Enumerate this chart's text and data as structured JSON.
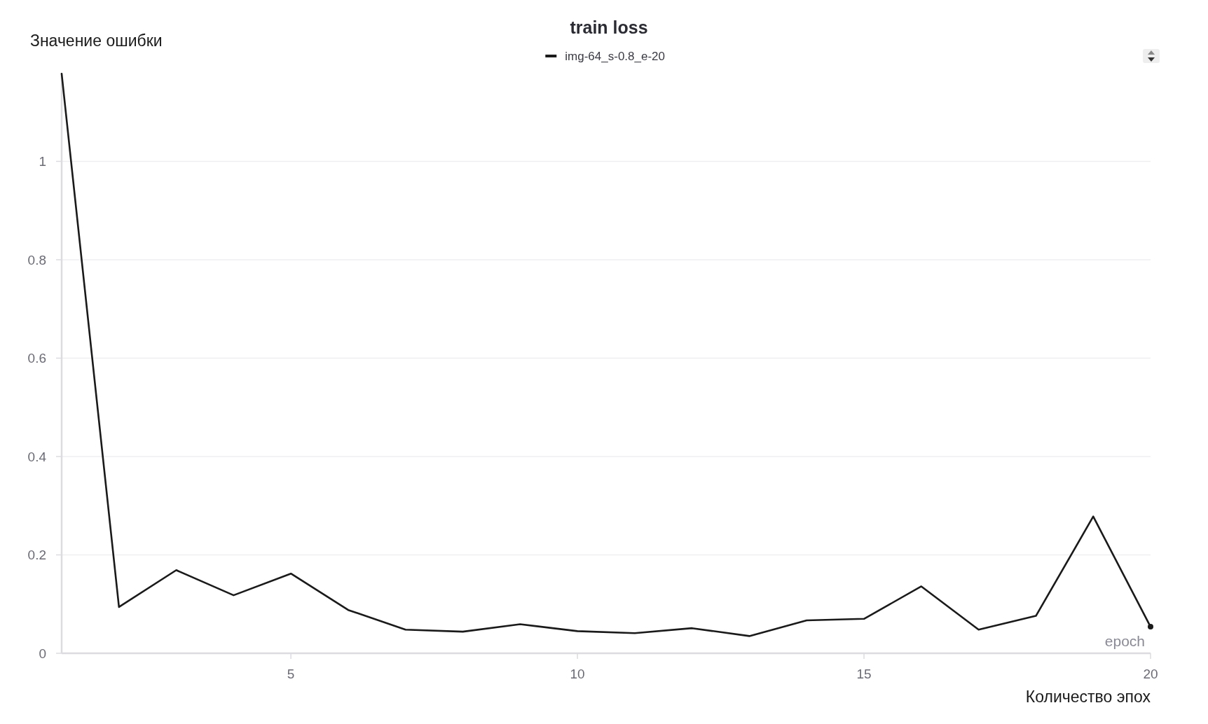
{
  "chart_data": {
    "type": "line",
    "title": "train loss",
    "ylabel": "Значение ошибки",
    "xlabel": "epoch",
    "annotations": [
      "Количество эпох"
    ],
    "x": [
      1,
      2,
      3,
      4,
      5,
      6,
      7,
      8,
      9,
      10,
      11,
      12,
      13,
      14,
      15,
      16,
      17,
      18,
      19,
      20
    ],
    "series": [
      {
        "name": "img-64_s-0.8_e-20",
        "color": "#1a1a1a",
        "values": [
          1.178,
          0.094,
          0.169,
          0.118,
          0.162,
          0.088,
          0.048,
          0.044,
          0.059,
          0.045,
          0.041,
          0.051,
          0.035,
          0.067,
          0.07,
          0.136,
          0.048,
          0.076,
          0.278,
          0.054
        ]
      },
      {
        "type": "scatter",
        "x": [
          20
        ],
        "values": [
          0.054
        ],
        "color": "#1a1a1a",
        "marker": "circle"
      }
    ],
    "xlim": [
      1,
      20
    ],
    "xticks": [
      5,
      10,
      15,
      20
    ],
    "ylim": [
      0,
      1.18
    ],
    "yticks": [
      0,
      0.2,
      0.4,
      0.6,
      0.8,
      1
    ],
    "grid": "y",
    "legend": "top",
    "line_style": "solid"
  }
}
